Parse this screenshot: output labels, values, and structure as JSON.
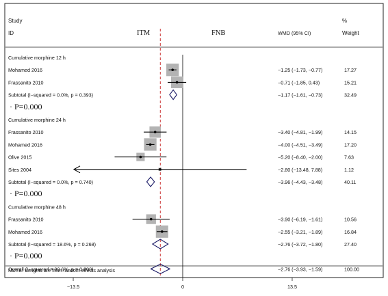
{
  "header": {
    "study_label": "Study",
    "id_label": "ID",
    "left_group": "ITM",
    "right_group": "FNB",
    "effect_label": "WMD (95% CI)",
    "pct_label": "%",
    "weight_label": "Weight"
  },
  "chart_data": {
    "type": "forest",
    "axis": {
      "xlim": [
        -15.5,
        17.5
      ],
      "ticks": [
        -13.5,
        0,
        13.5
      ],
      "tick_labels": [
        "−13.5",
        "0",
        "13.5"
      ]
    },
    "reference_line": 0,
    "overall_line": -2.76,
    "groups": [
      {
        "title": "Cumulative morphine 12 h",
        "studies": [
          {
            "label": "Mohamed 2016",
            "est": -1.25,
            "lo": -1.73,
            "hi": -0.77,
            "ci_text": "−1.25 (−1.73, −0.77)",
            "weight": "17.27",
            "w": 17.27
          },
          {
            "label": "Frassanito 2010",
            "est": -0.71,
            "lo": -1.85,
            "hi": 0.43,
            "ci_text": "−0.71 (−1.85, 0.43)",
            "weight": "15.21",
            "w": 15.21
          }
        ],
        "subtotal": {
          "label": "Subtotal  (I−squared = 0.0%, p = 0.393)",
          "est": -1.17,
          "lo": -1.61,
          "hi": -0.73,
          "ci_text": "−1.17 (−1.61, −0.73)",
          "weight": "32.49"
        },
        "pvalue": "P=0.000"
      },
      {
        "title": "Cumulative morphine 24 h",
        "studies": [
          {
            "label": "Frassanito 2010",
            "est": -3.4,
            "lo": -4.81,
            "hi": -1.99,
            "ci_text": "−3.40 (−4.81, −1.99)",
            "weight": "14.15",
            "w": 14.15
          },
          {
            "label": "Mohamed 2016",
            "est": -4.0,
            "lo": -4.51,
            "hi": -3.49,
            "ci_text": "−4.00 (−4.51, −3.49)",
            "weight": "17.20",
            "w": 17.2
          },
          {
            "label": "Olive 2015",
            "est": -5.2,
            "lo": -8.4,
            "hi": -2.0,
            "ci_text": "−5.20 (−8.40, −2.00)",
            "weight": "7.63",
            "w": 7.63
          },
          {
            "label": "Sites 2004",
            "est": -2.8,
            "lo": -13.48,
            "hi": 7.88,
            "ci_text": "−2.80 (−13.48, 7.88)",
            "weight": "1.12",
            "w": 1.12,
            "arrow_left": true
          }
        ],
        "subtotal": {
          "label": "Subtotal  (I−squared = 0.0%, p = 0.740)",
          "est": -3.96,
          "lo": -4.43,
          "hi": -3.48,
          "ci_text": "−3.96 (−4.43, −3.48)",
          "weight": "40.11"
        },
        "pvalue": "P=0.000"
      },
      {
        "title": "Cumulative morphine 48 h",
        "studies": [
          {
            "label": "Frassanito 2010",
            "est": -3.9,
            "lo": -6.19,
            "hi": -1.61,
            "ci_text": "−3.90 (−6.19, −1.61)",
            "weight": "10.56",
            "w": 10.56
          },
          {
            "label": "Mohamed 2016",
            "est": -2.55,
            "lo": -3.21,
            "hi": -1.89,
            "ci_text": "−2.55 (−3.21, −1.89)",
            "weight": "16.84",
            "w": 16.84
          }
        ],
        "subtotal": {
          "label": "Subtotal  (I−squared = 18.6%, p = 0.268)",
          "est": -2.76,
          "lo": -3.72,
          "hi": -1.8,
          "ci_text": "−2.76 (−3.72, −1.80)",
          "weight": "27.40"
        },
        "pvalue": "P=0.000"
      }
    ],
    "overall": {
      "label": "Overall  (I−squared = 90.6%, p = 0.000)",
      "est": -2.76,
      "lo": -3.93,
      "hi": -1.59,
      "ci_text": "−2.76 (−3.93, −1.59)",
      "weight": "100.00"
    },
    "note": "NOTE: Weights are from random effects analysis"
  },
  "colors": {
    "frame": "#222222",
    "weight_box": "#b3b3b3",
    "diamond": "#1a1a66",
    "overall_line": "#cc3333",
    "text": "#111111"
  }
}
